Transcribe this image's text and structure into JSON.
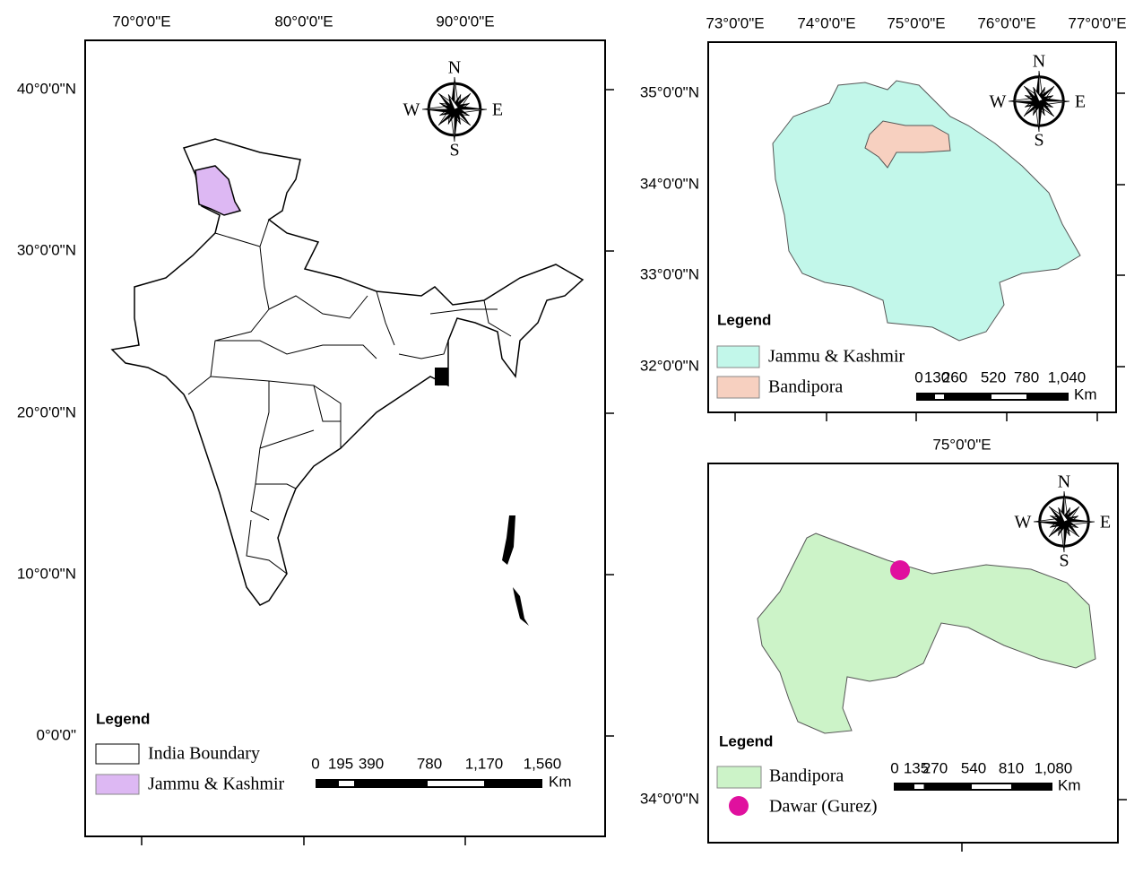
{
  "panels": [
    {
      "x_labels": [
        "70°0'0\"E",
        "80°0'0\"E",
        "90°0'0\"E"
      ],
      "y_labels": [
        "40°0'0\"N",
        "30°0'0\"N",
        "20°0'0\"N",
        "10°0'0\"N",
        "0°0'0\""
      ],
      "compass": {
        "n": "N",
        "s": "S",
        "e": "E",
        "w": "W"
      },
      "legend": {
        "title": "Legend",
        "items": [
          "India Boundary",
          "Jammu & Kashmir"
        ]
      },
      "scale": {
        "labels": [
          "0",
          "195",
          "390",
          "780",
          "1,170",
          "1,560"
        ],
        "unit": "Km"
      }
    },
    {
      "x_labels": [
        "73°0'0\"E",
        "74°0'0\"E",
        "75°0'0\"E",
        "76°0'0\"E",
        "77°0'0\"E"
      ],
      "y_labels": [
        "35°0'0\"N",
        "34°0'0\"N",
        "33°0'0\"N",
        "32°0'0\"N"
      ],
      "compass": {
        "n": "N",
        "s": "S",
        "e": "E",
        "w": "W"
      },
      "legend": {
        "title": "Legend",
        "items": [
          "Jammu & Kashmir",
          "Bandipora"
        ]
      },
      "scale": {
        "labels": [
          "0",
          "130",
          "260",
          "520",
          "780",
          "1,040"
        ],
        "unit": "Km"
      }
    },
    {
      "x_labels": [
        "75°0'0\"E"
      ],
      "y_labels": [
        "34°0'0\"N"
      ],
      "compass": {
        "n": "N",
        "s": "S",
        "e": "E",
        "w": "W"
      },
      "legend": {
        "title": "Legend",
        "items": [
          "Bandipora",
          "Dawar (Gurez)"
        ]
      },
      "scale": {
        "labels": [
          "0",
          "135",
          "270",
          "540",
          "810",
          "1,080"
        ],
        "unit": "Km"
      }
    }
  ]
}
